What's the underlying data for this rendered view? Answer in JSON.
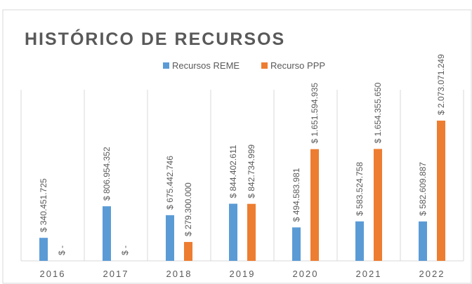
{
  "chart_data": {
    "type": "bar",
    "title": "HISTÓRICO DE RECURSOS",
    "categories": [
      "2016",
      "2017",
      "2018",
      "2019",
      "2020",
      "2021",
      "2022"
    ],
    "series": [
      {
        "name": "Recursos REME",
        "color": "#5b9bd5",
        "values": [
          340451725,
          806954352,
          675442746,
          844402611,
          494583981,
          583524758,
          582609887
        ],
        "value_labels": [
          "$ 340.451.725",
          "$ 806.954.352",
          "$ 675.442.746",
          "$ 844.402.611",
          "$ 494.583.981",
          "$ 583.524.758",
          "$ 582.609.887"
        ]
      },
      {
        "name": "Recurso PPP",
        "color": "#ed7d31",
        "values": [
          0,
          0,
          279300000,
          842734999,
          1651594935,
          1654355650,
          2073071249
        ],
        "value_labels": [
          "$ -",
          "$ -",
          "$ 279.300.000",
          "$ 842.734.999",
          "$ 1.651.594.935",
          "$ 1.654.355.650",
          "$ 2.073.071.249"
        ]
      }
    ],
    "ylim": [
      0,
      3400000000
    ]
  }
}
